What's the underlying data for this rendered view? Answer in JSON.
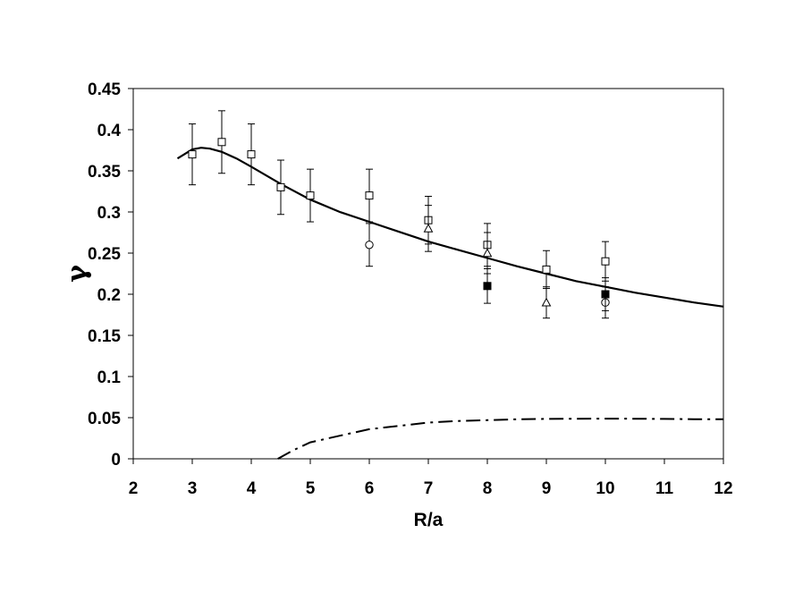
{
  "chart_data": {
    "type": "scatter",
    "title": "",
    "xlabel": "R/a",
    "ylabel": "γ",
    "xlim": [
      2,
      12
    ],
    "ylim": [
      0,
      0.45
    ],
    "x_ticks": [
      2,
      3,
      4,
      5,
      6,
      7,
      8,
      9,
      10,
      11,
      12
    ],
    "y_ticks": [
      0,
      0.05,
      0.1,
      0.15,
      0.2,
      0.25,
      0.3,
      0.35,
      0.4,
      0.45
    ],
    "x_tick_labels": [
      "2",
      "3",
      "4",
      "5",
      "6",
      "7",
      "8",
      "9",
      "10",
      "11",
      "12"
    ],
    "y_tick_labels": [
      "0",
      "0.05",
      "0.1",
      "0.15",
      "0.2",
      "0.25",
      "0.3",
      "0.35",
      "0.4",
      "0.45"
    ],
    "grid": false,
    "legend": "none",
    "series": [
      {
        "marker": "open-square",
        "points": [
          {
            "x": 3,
            "y": 0.37,
            "err": 0.037
          },
          {
            "x": 3.5,
            "y": 0.385,
            "err": 0.038
          },
          {
            "x": 4,
            "y": 0.37,
            "err": 0.037
          },
          {
            "x": 4.5,
            "y": 0.33,
            "err": 0.033
          },
          {
            "x": 5,
            "y": 0.32,
            "err": 0.032
          },
          {
            "x": 6,
            "y": 0.32,
            "err": 0.032
          },
          {
            "x": 7,
            "y": 0.29,
            "err": 0.029
          },
          {
            "x": 8,
            "y": 0.26,
            "err": 0.026
          },
          {
            "x": 9,
            "y": 0.23,
            "err": 0.023
          },
          {
            "x": 10,
            "y": 0.24,
            "err": 0.024
          }
        ]
      },
      {
        "marker": "open-circle",
        "points": [
          {
            "x": 6,
            "y": 0.26,
            "err": 0.026
          },
          {
            "x": 10,
            "y": 0.19,
            "err": 0.019
          }
        ]
      },
      {
        "marker": "open-triangle",
        "points": [
          {
            "x": 7,
            "y": 0.28,
            "err": 0.028
          },
          {
            "x": 8,
            "y": 0.25,
            "err": 0.025
          },
          {
            "x": 9,
            "y": 0.19,
            "err": 0.019
          }
        ]
      },
      {
        "marker": "filled-square",
        "points": [
          {
            "x": 8,
            "y": 0.21,
            "err": 0.021
          },
          {
            "x": 10,
            "y": 0.2,
            "err": 0.02
          }
        ]
      }
    ],
    "curves": [
      {
        "style": "solid",
        "x": [
          2.75,
          3.0,
          3.15,
          3.3,
          3.5,
          3.75,
          4.0,
          4.5,
          5.0,
          5.5,
          6.0,
          6.5,
          7.0,
          7.5,
          8.0,
          8.5,
          9.0,
          9.5,
          10.0,
          10.5,
          11.0,
          11.5,
          12.0
        ],
        "y": [
          0.365,
          0.376,
          0.378,
          0.377,
          0.373,
          0.365,
          0.355,
          0.334,
          0.315,
          0.3,
          0.288,
          0.276,
          0.264,
          0.254,
          0.244,
          0.234,
          0.225,
          0.216,
          0.209,
          0.202,
          0.196,
          0.19,
          0.185
        ]
      },
      {
        "style": "dash-dot",
        "x": [
          4.45,
          4.7,
          5.0,
          5.5,
          6.0,
          6.5,
          7.0,
          7.5,
          8.0,
          8.5,
          9.0,
          9.5,
          10.0,
          10.5,
          11.0,
          11.5,
          12.0
        ],
        "y": [
          0.0,
          0.01,
          0.02,
          0.028,
          0.036,
          0.04,
          0.044,
          0.046,
          0.047,
          0.048,
          0.0485,
          0.0487,
          0.0488,
          0.0487,
          0.0485,
          0.0482,
          0.048
        ]
      }
    ]
  }
}
